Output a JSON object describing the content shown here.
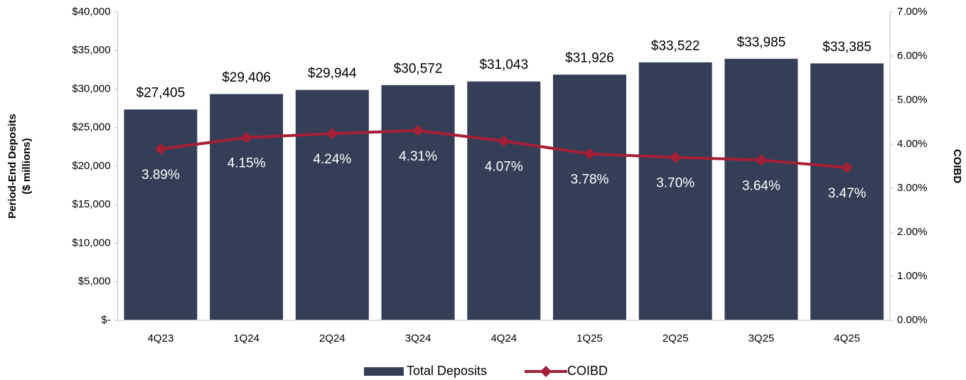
{
  "chart_data": {
    "type": "bar_line",
    "categories": [
      "4Q23",
      "1Q24",
      "2Q24",
      "3Q24",
      "4Q24",
      "1Q25",
      "2Q25",
      "3Q25",
      "4Q25"
    ],
    "series": [
      {
        "name": "Total Deposits",
        "color": "#343f57",
        "type": "bar",
        "values": [
          27405,
          29406,
          29944,
          30572,
          31043,
          31926,
          33522,
          33985,
          33385
        ],
        "value_labels": [
          "$27,405",
          "$29,406",
          "$29,944",
          "$30,572",
          "$31,043",
          "$31,926",
          "$33,522",
          "$33,985",
          "$33,385"
        ]
      },
      {
        "name": "COIBD",
        "color": "#a51f36",
        "type": "line",
        "axis": "y2",
        "values": [
          3.89,
          4.15,
          4.24,
          4.31,
          4.07,
          3.78,
          3.7,
          3.64,
          3.47
        ],
        "value_labels": [
          "3.89%",
          "4.15%",
          "4.24%",
          "4.31%",
          "4.07%",
          "3.78%",
          "3.70%",
          "3.64%",
          "3.47%"
        ]
      }
    ],
    "ylabel": [
      "Period-End  Deposits",
      "($ millions)"
    ],
    "y2label": "COIBD",
    "ylim": [
      0,
      40000
    ],
    "yticks": [
      {
        "value": 0,
        "label": "$-"
      },
      {
        "value": 5000,
        "label": "$5,000"
      },
      {
        "value": 10000,
        "label": "$10,000"
      },
      {
        "value": 15000,
        "label": "$15,000"
      },
      {
        "value": 20000,
        "label": "$20,000"
      },
      {
        "value": 25000,
        "label": "$25,000"
      },
      {
        "value": 30000,
        "label": "$30,000"
      },
      {
        "value": 35000,
        "label": "$35,000"
      },
      {
        "value": 40000,
        "label": "$40,000"
      }
    ],
    "y2lim": [
      0,
      7
    ],
    "y2ticks": [
      {
        "value": 0,
        "label": "0.00%"
      },
      {
        "value": 1,
        "label": "1.00%"
      },
      {
        "value": 2,
        "label": "2.00%"
      },
      {
        "value": 3,
        "label": "3.00%"
      },
      {
        "value": 4,
        "label": "4.00%"
      },
      {
        "value": 5,
        "label": "5.00%"
      },
      {
        "value": 6,
        "label": "6.00%"
      },
      {
        "value": 7,
        "label": "7.00%"
      }
    ],
    "legend": "bottom"
  }
}
